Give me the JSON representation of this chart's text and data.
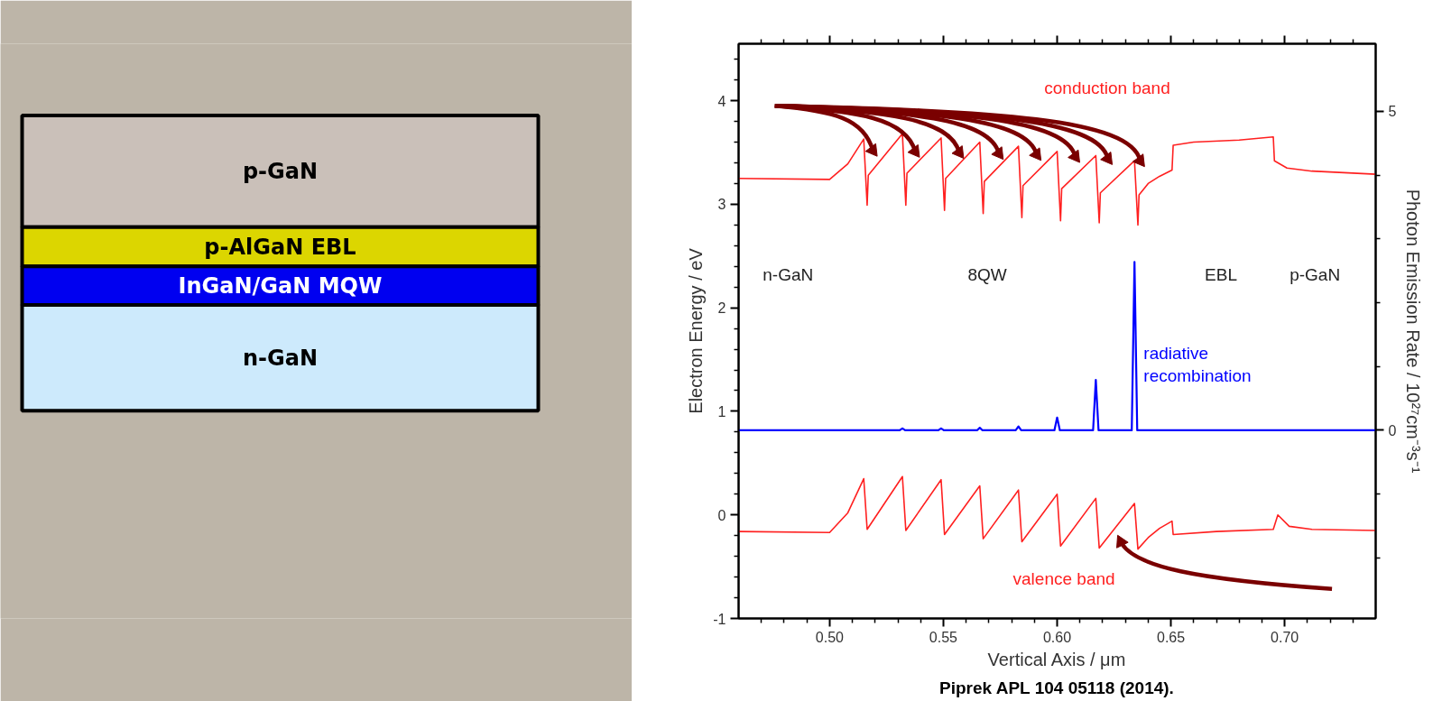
{
  "chart_data": {
    "type": "line",
    "xlabel": "Vertical Axis / μm",
    "ylabel": "Electron Energy / eV",
    "y2label": "Photon Emission Rate / 10²⁷cm⁻³s⁻¹",
    "xlim": [
      0.46,
      0.74
    ],
    "ylim": [
      -1,
      4.55
    ],
    "y2lim": [
      -2.95,
      6.06
    ],
    "xticks": [
      {
        "value": 0.47,
        "label": null
      },
      {
        "value": 0.48,
        "label": null
      },
      {
        "value": 0.49,
        "label": null
      },
      {
        "value": 0.5,
        "label": "0.50"
      },
      {
        "value": 0.51,
        "label": null
      },
      {
        "value": 0.52,
        "label": null
      },
      {
        "value": 0.53,
        "label": null
      },
      {
        "value": 0.54,
        "label": null
      },
      {
        "value": 0.55,
        "label": "0.55"
      },
      {
        "value": 0.56,
        "label": null
      },
      {
        "value": 0.57,
        "label": null
      },
      {
        "value": 0.58,
        "label": null
      },
      {
        "value": 0.59,
        "label": null
      },
      {
        "value": 0.6,
        "label": "0.60"
      },
      {
        "value": 0.61,
        "label": null
      },
      {
        "value": 0.62,
        "label": null
      },
      {
        "value": 0.63,
        "label": null
      },
      {
        "value": 0.64,
        "label": null
      },
      {
        "value": 0.65,
        "label": "0.65"
      },
      {
        "value": 0.66,
        "label": null
      },
      {
        "value": 0.67,
        "label": null
      },
      {
        "value": 0.68,
        "label": null
      },
      {
        "value": 0.69,
        "label": null
      },
      {
        "value": 0.7,
        "label": "0.70"
      },
      {
        "value": 0.71,
        "label": null
      },
      {
        "value": 0.72,
        "label": null
      },
      {
        "value": 0.73,
        "label": null
      }
    ],
    "yticks": [
      -1,
      {
        "value": -0.8,
        "label": null
      },
      {
        "value": -0.6,
        "label": null
      },
      {
        "value": -0.4,
        "label": null
      },
      {
        "value": -0.2,
        "label": null
      },
      0,
      {
        "value": 0.2,
        "label": null
      },
      {
        "value": 0.4,
        "label": null
      },
      {
        "value": 0.6,
        "label": null
      },
      {
        "value": 0.8,
        "label": null
      },
      1,
      {
        "value": 1.2,
        "label": null
      },
      {
        "value": 1.4,
        "label": null
      },
      {
        "value": 1.6,
        "label": null
      },
      {
        "value": 1.8,
        "label": null
      },
      2,
      {
        "value": 2.2,
        "label": null
      },
      {
        "value": 2.4,
        "label": null
      },
      {
        "value": 2.6,
        "label": null
      },
      {
        "value": 2.8,
        "label": null
      },
      3,
      {
        "value": 3.2,
        "label": null
      },
      {
        "value": 3.4,
        "label": null
      },
      {
        "value": 3.6,
        "label": null
      },
      {
        "value": 3.8,
        "label": null
      },
      4,
      {
        "value": 4.2,
        "label": null
      },
      {
        "value": 4.4,
        "label": null
      }
    ],
    "y2ticks": [
      {
        "value": -2,
        "label": null
      },
      {
        "value": -1,
        "label": null
      },
      0,
      {
        "value": 1,
        "label": null
      },
      {
        "value": 2,
        "label": null
      },
      {
        "value": 3,
        "label": null
      },
      {
        "value": 4,
        "label": null
      },
      5
    ],
    "grid": false,
    "series": [
      {
        "name": "conduction band",
        "color": "#ff2020",
        "x": [
          0.46,
          0.5,
          0.508,
          0.515,
          0.5165,
          0.517,
          0.532,
          0.5335,
          0.534,
          0.549,
          0.5505,
          0.551,
          0.566,
          0.5675,
          0.568,
          0.583,
          0.5845,
          0.585,
          0.6,
          0.6015,
          0.602,
          0.617,
          0.6185,
          0.619,
          0.634,
          0.6355,
          0.636,
          0.64,
          0.645,
          0.6505,
          0.651,
          0.66,
          0.68,
          0.695,
          0.6955,
          0.701,
          0.712,
          0.74
        ],
        "values": [
          3.25,
          3.24,
          3.39,
          3.63,
          2.99,
          3.28,
          3.68,
          2.99,
          3.3,
          3.64,
          2.94,
          3.25,
          3.6,
          2.91,
          3.22,
          3.56,
          2.87,
          3.18,
          3.51,
          2.84,
          3.15,
          3.47,
          2.82,
          3.11,
          3.42,
          2.8,
          3.09,
          3.2,
          3.27,
          3.33,
          3.57,
          3.6,
          3.62,
          3.65,
          3.42,
          3.35,
          3.32,
          3.29
        ]
      },
      {
        "name": "valence band",
        "color": "#ff2020",
        "x": [
          0.46,
          0.5,
          0.508,
          0.515,
          0.5165,
          0.532,
          0.5335,
          0.549,
          0.5505,
          0.566,
          0.5675,
          0.583,
          0.5845,
          0.6,
          0.6015,
          0.617,
          0.6185,
          0.634,
          0.6355,
          0.64,
          0.645,
          0.6505,
          0.651,
          0.67,
          0.695,
          0.697,
          0.702,
          0.712,
          0.74
        ],
        "values": [
          -0.16,
          -0.17,
          0.02,
          0.35,
          -0.14,
          0.37,
          -0.15,
          0.34,
          -0.19,
          0.28,
          -0.23,
          0.24,
          -0.26,
          0.2,
          -0.3,
          0.16,
          -0.32,
          0.11,
          -0.33,
          -0.22,
          -0.13,
          -0.06,
          -0.19,
          -0.16,
          -0.14,
          0.0,
          -0.11,
          -0.14,
          -0.15
        ]
      },
      {
        "name": "radiative recombination",
        "color": "#0000ff",
        "axis": "y2",
        "x": [
          0.46,
          0.5308,
          0.532,
          0.5332,
          0.5478,
          0.549,
          0.5502,
          0.5648,
          0.566,
          0.5672,
          0.5818,
          0.583,
          0.5842,
          0.5988,
          0.6,
          0.6012,
          0.6158,
          0.617,
          0.6182,
          0.6328,
          0.634,
          0.6352,
          0.74
        ],
        "values": [
          0,
          0,
          0.03,
          0,
          0,
          0.03,
          0,
          0,
          0.04,
          0,
          0,
          0.06,
          0,
          0,
          0.2,
          0,
          0,
          0.79,
          0,
          0,
          2.64,
          0,
          0
        ]
      }
    ],
    "annotations": [
      "n-GaN",
      "8QW",
      "EBL",
      "p-GaN",
      "p-GaN",
      "p-AlGaN EBL",
      "InGaN/GaN MQW",
      "n-GaN",
      "Piprek APL 104 05118 (2014)."
    ]
  }
}
